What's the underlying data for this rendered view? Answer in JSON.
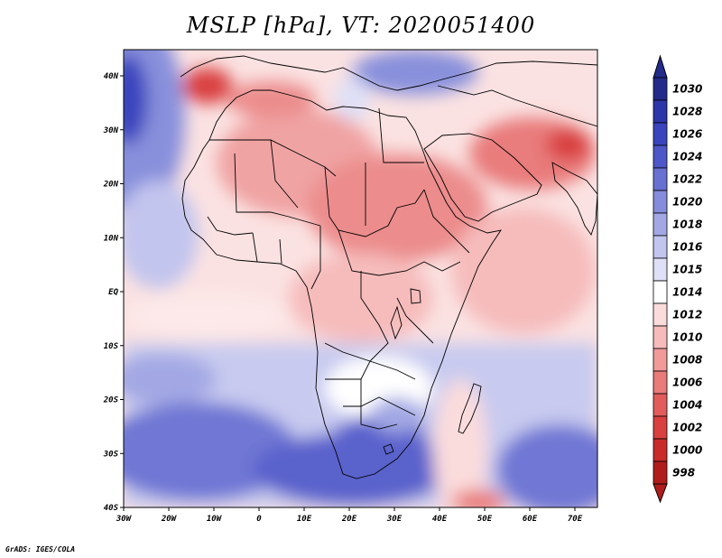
{
  "title": "MSLP [hPa], VT: 2020051400",
  "credit": "GrADS: IGES/COLA",
  "map": {
    "region": "Africa",
    "lon_labels": [
      "30W",
      "20W",
      "10W",
      "0",
      "10E",
      "20E",
      "30E",
      "40E",
      "50E",
      "60E",
      "70E"
    ],
    "lat_labels": [
      "40N",
      "30N",
      "20N",
      "10N",
      "EQ",
      "10S",
      "20S",
      "30S",
      "40S"
    ]
  },
  "colorbar": {
    "labels": [
      "1030",
      "1028",
      "1026",
      "1024",
      "1022",
      "1020",
      "1018",
      "1016",
      "1015",
      "1014",
      "1012",
      "1010",
      "1008",
      "1006",
      "1004",
      "1002",
      "1000",
      "998"
    ],
    "colors": [
      "#222a8a",
      "#2d36a8",
      "#3a44bd",
      "#4d57c8",
      "#6870d2",
      "#858cdb",
      "#a3a8e4",
      "#c2c5ee",
      "#dfe0f6",
      "#ffffff",
      "#fbdcdc",
      "#f6bcbc",
      "#f09a9a",
      "#e97b7b",
      "#e25c5c",
      "#d94040",
      "#c92a2a",
      "#b01c1c"
    ]
  }
}
